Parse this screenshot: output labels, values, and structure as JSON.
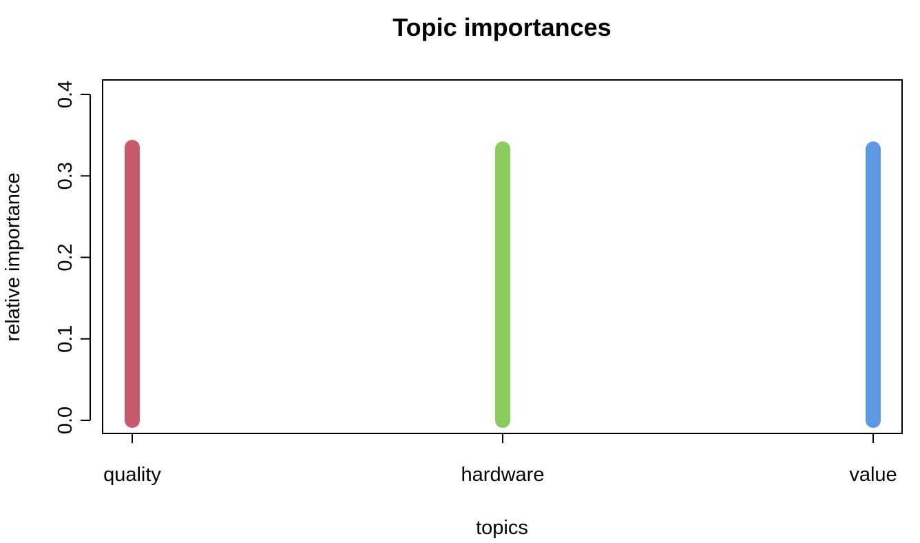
{
  "chart_data": {
    "type": "bar",
    "title": "Topic importances",
    "xlabel": "topics",
    "ylabel": "relative importance",
    "categories": [
      "quality",
      "hardware",
      "value"
    ],
    "values": [
      0.335,
      0.333,
      0.333
    ],
    "colors": [
      "#C75B6B",
      "#8ACD5C",
      "#5E99E3"
    ],
    "ylim": [
      0,
      0.4
    ],
    "yticks": [
      "0.0",
      "0.1",
      "0.2",
      "0.3",
      "0.4"
    ],
    "grid": false,
    "legend": "none"
  }
}
